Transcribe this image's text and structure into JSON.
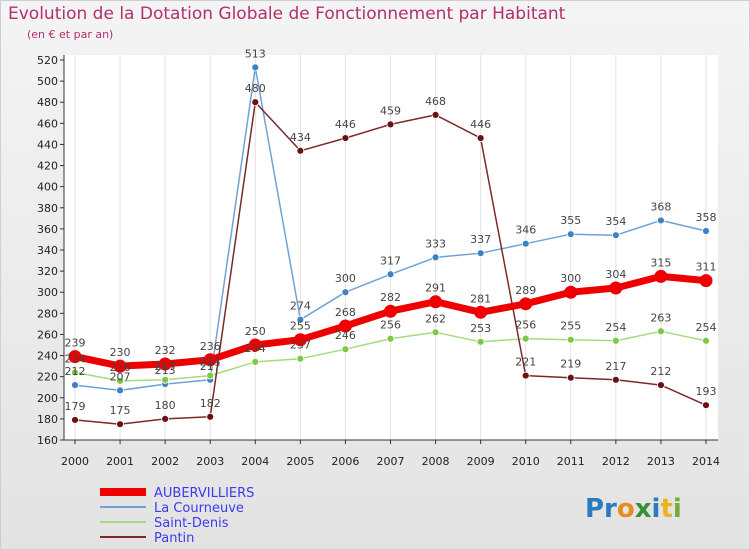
{
  "header": {
    "title": "Evolution de la Dotation Globale de Fonctionnement par Habitant",
    "subtitle": "(en € et par an)"
  },
  "logo": {
    "parts": [
      "Pr",
      "o",
      "x",
      "i",
      "t",
      "i"
    ],
    "colors": [
      "#2a7bbf",
      "#e98b1e",
      "#3a8f3a",
      "#2a7bbf",
      "#e9b21e",
      "#6fae3a"
    ]
  },
  "chart_data": {
    "type": "line",
    "title": "Evolution de la Dotation Globale de Fonctionnement par Habitant",
    "subtitle": "(en € et par an)",
    "xlabel": "",
    "ylabel": "",
    "x": [
      2000,
      2001,
      2002,
      2003,
      2004,
      2005,
      2006,
      2007,
      2008,
      2009,
      2010,
      2011,
      2012,
      2013,
      2014
    ],
    "ylim": [
      160,
      520
    ],
    "ytick_step": 20,
    "grid": "vertical",
    "legend": "bottom-left",
    "series": [
      {
        "name": "AUBERVILLIERS",
        "color": "#ee0000",
        "marker": "#ee0000",
        "highlight": true,
        "values": [
          239,
          230,
          232,
          236,
          250,
          255,
          268,
          282,
          291,
          281,
          289,
          300,
          304,
          315,
          311
        ]
      },
      {
        "name": "La Courneuve",
        "color": "#6fa3d6",
        "marker": "#3c82c4",
        "highlight": false,
        "values": [
          212,
          207,
          213,
          217,
          513,
          274,
          300,
          317,
          333,
          337,
          346,
          355,
          354,
          368,
          358
        ]
      },
      {
        "name": "Saint-Denis",
        "color": "#a6da7e",
        "marker": "#7cc943",
        "highlight": false,
        "values": [
          224,
          216,
          217,
          221,
          234,
          237,
          246,
          256,
          262,
          253,
          256,
          255,
          254,
          263,
          254
        ]
      },
      {
        "name": "Pantin",
        "color": "#7a2a2a",
        "marker": "#6b1111",
        "highlight": false,
        "values": [
          179,
          175,
          180,
          182,
          480,
          434,
          446,
          459,
          468,
          446,
          221,
          219,
          217,
          212,
          193
        ]
      }
    ]
  }
}
